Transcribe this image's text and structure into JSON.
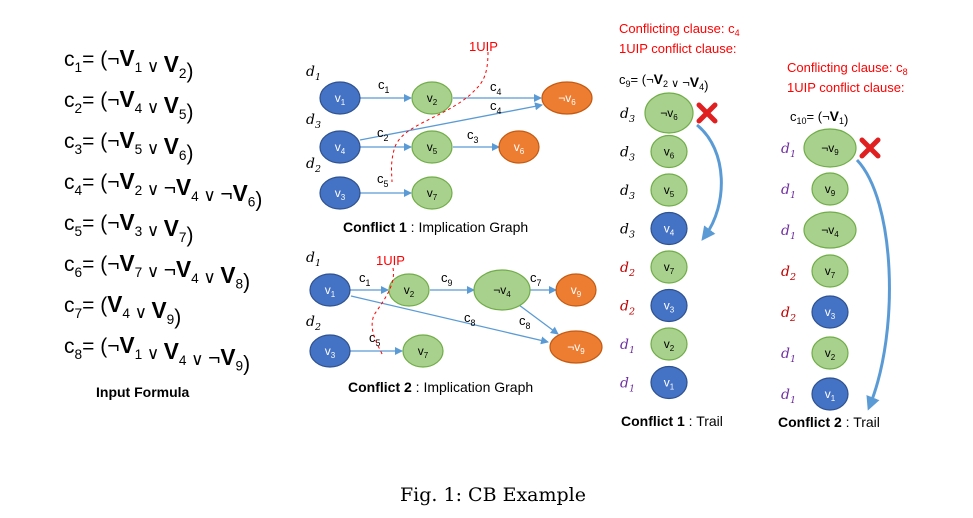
{
  "formula": {
    "rows": [
      {
        "name": "c",
        "sub": "1",
        "lits": [
          {
            "neg": true,
            "v": "V",
            "i": "1"
          },
          {
            "neg": false,
            "v": "V",
            "i": "2"
          }
        ]
      },
      {
        "name": "c",
        "sub": "2",
        "lits": [
          {
            "neg": true,
            "v": "V",
            "i": "4"
          },
          {
            "neg": false,
            "v": "V",
            "i": "5"
          }
        ]
      },
      {
        "name": "c",
        "sub": "3",
        "lits": [
          {
            "neg": true,
            "v": "V",
            "i": "5"
          },
          {
            "neg": false,
            "v": "V",
            "i": "6"
          }
        ]
      },
      {
        "name": "c",
        "sub": "4",
        "lits": [
          {
            "neg": true,
            "v": "V",
            "i": "2"
          },
          {
            "neg": true,
            "v": "V",
            "i": "4"
          },
          {
            "neg": true,
            "v": "V",
            "i": "6"
          }
        ]
      },
      {
        "name": "c",
        "sub": "5",
        "lits": [
          {
            "neg": true,
            "v": "V",
            "i": "3"
          },
          {
            "neg": false,
            "v": "V",
            "i": "7"
          }
        ]
      },
      {
        "name": "c",
        "sub": "6",
        "lits": [
          {
            "neg": true,
            "v": "V",
            "i": "7"
          },
          {
            "neg": true,
            "v": "V",
            "i": "4"
          },
          {
            "neg": false,
            "v": "V",
            "i": "8"
          }
        ]
      },
      {
        "name": "c",
        "sub": "7",
        "lits": [
          {
            "neg": false,
            "v": "V",
            "i": "4"
          },
          {
            "neg": false,
            "v": "V",
            "i": "9"
          }
        ]
      },
      {
        "name": "c",
        "sub": "8",
        "lits": [
          {
            "neg": true,
            "v": "V",
            "i": "1"
          },
          {
            "neg": false,
            "v": "V",
            "i": "4"
          },
          {
            "neg": true,
            "v": "V",
            "i": "9"
          }
        ]
      }
    ],
    "caption": "Input Formula"
  },
  "graph1": {
    "title_bold": "Conflict 1",
    "title_rest": " : Implication Graph",
    "uip_label": "1UIP",
    "nodes": [
      {
        "id": "g1v1",
        "name": "v",
        "sub": "1",
        "neg": false
      },
      {
        "id": "g1v2",
        "name": "v",
        "sub": "2",
        "neg": false
      },
      {
        "id": "g1nv6",
        "name": "v",
        "sub": "6",
        "neg": true
      },
      {
        "id": "g1v4",
        "name": "v",
        "sub": "4",
        "neg": false
      },
      {
        "id": "g1v5",
        "name": "v",
        "sub": "5",
        "neg": false
      },
      {
        "id": "g1v6",
        "name": "v",
        "sub": "6",
        "neg": false
      },
      {
        "id": "g1v3",
        "name": "v",
        "sub": "3",
        "neg": false
      },
      {
        "id": "g1v7",
        "name": "v",
        "sub": "7",
        "neg": false
      }
    ],
    "edge_labels": [
      {
        "id": "g1e1",
        "name": "c",
        "sub": "1"
      },
      {
        "id": "g1e2",
        "name": "c",
        "sub": "4"
      },
      {
        "id": "g1e3",
        "name": "c",
        "sub": "4"
      },
      {
        "id": "g1e4",
        "name": "c",
        "sub": "2"
      },
      {
        "id": "g1e5",
        "name": "c",
        "sub": "3"
      },
      {
        "id": "g1e6",
        "name": "c",
        "sub": "5"
      }
    ],
    "levels": [
      {
        "id": "g1d1",
        "name": "d",
        "sub": "1"
      },
      {
        "id": "g1d3",
        "name": "d",
        "sub": "3"
      },
      {
        "id": "g1d2",
        "name": "d",
        "sub": "2"
      }
    ]
  },
  "graph2": {
    "title_bold": "Conflict 2",
    "title_rest": " : Implication Graph",
    "uip_label": "1UIP",
    "nodes": [
      {
        "id": "g2v1",
        "name": "v",
        "sub": "1",
        "neg": false
      },
      {
        "id": "g2v2",
        "name": "v",
        "sub": "2",
        "neg": false
      },
      {
        "id": "g2nv4",
        "name": "v",
        "sub": "4",
        "neg": true
      },
      {
        "id": "g2v9",
        "name": "v",
        "sub": "9",
        "neg": false
      },
      {
        "id": "g2nv9",
        "name": "v",
        "sub": "9",
        "neg": true
      },
      {
        "id": "g2v3",
        "name": "v",
        "sub": "3",
        "neg": false
      },
      {
        "id": "g2v7",
        "name": "v",
        "sub": "7",
        "neg": false
      }
    ],
    "edge_labels": [
      {
        "id": "g2e1",
        "name": "c",
        "sub": "1"
      },
      {
        "id": "g2e2",
        "name": "c",
        "sub": "9"
      },
      {
        "id": "g2e3",
        "name": "c",
        "sub": "7"
      },
      {
        "id": "g2e4",
        "name": "c",
        "sub": "8"
      },
      {
        "id": "g2e5",
        "name": "c",
        "sub": "8"
      },
      {
        "id": "g2e6",
        "name": "c",
        "sub": "5"
      }
    ],
    "levels": [
      {
        "id": "g2d1",
        "name": "d",
        "sub": "1"
      },
      {
        "id": "g2d2",
        "name": "d",
        "sub": "2"
      }
    ]
  },
  "trail1": {
    "header_line1": "Conflicting clause: c",
    "header_line1_sub": "4",
    "header_line2": "1UIP conflict clause:",
    "learned": {
      "name": "c",
      "sub": "9",
      "lits": [
        {
          "neg": true,
          "v": "V",
          "i": "2"
        },
        {
          "neg": true,
          "v": "V",
          "i": "4"
        }
      ]
    },
    "caption_bold": "Conflict 1",
    "caption_rest": " : Trail",
    "items": [
      {
        "level": "d",
        "level_sub": "3",
        "node": "v",
        "node_sub": "6",
        "neg": true,
        "color": "green",
        "cross": true
      },
      {
        "level": "d",
        "level_sub": "3",
        "node": "v",
        "node_sub": "6",
        "neg": false,
        "color": "green",
        "cross": false
      },
      {
        "level": "d",
        "level_sub": "3",
        "node": "v",
        "node_sub": "5",
        "neg": false,
        "color": "green",
        "cross": false
      },
      {
        "level": "d",
        "level_sub": "3",
        "node": "v",
        "node_sub": "4",
        "neg": false,
        "color": "blue",
        "cross": false
      },
      {
        "level": "d",
        "level_sub": "2",
        "node": "v",
        "node_sub": "7",
        "neg": false,
        "color": "green",
        "cross": false
      },
      {
        "level": "d",
        "level_sub": "2",
        "node": "v",
        "node_sub": "3",
        "neg": false,
        "color": "blue",
        "cross": false
      },
      {
        "level": "d",
        "level_sub": "1",
        "node": "v",
        "node_sub": "2",
        "neg": false,
        "color": "green",
        "cross": false
      },
      {
        "level": "d",
        "level_sub": "1",
        "node": "v",
        "node_sub": "1",
        "neg": false,
        "color": "blue",
        "cross": false
      }
    ]
  },
  "trail2": {
    "header_line1": "Conflicting clause: c",
    "header_line1_sub": "8",
    "header_line2": "1UIP conflict clause:",
    "learned": {
      "name": "c",
      "sub": "10",
      "lits": [
        {
          "neg": true,
          "v": "V",
          "i": "1"
        }
      ]
    },
    "caption_bold": "Conflict 2",
    "caption_rest": " : Trail",
    "items": [
      {
        "level": "d",
        "level_sub": "1",
        "node": "v",
        "node_sub": "9",
        "neg": true,
        "color": "green",
        "cross": true
      },
      {
        "level": "d",
        "level_sub": "1",
        "node": "v",
        "node_sub": "9",
        "neg": false,
        "color": "green",
        "cross": false
      },
      {
        "level": "d",
        "level_sub": "1",
        "node": "v",
        "node_sub": "4",
        "neg": true,
        "color": "green",
        "cross": false
      },
      {
        "level": "d",
        "level_sub": "2",
        "node": "v",
        "node_sub": "7",
        "neg": false,
        "color": "green",
        "cross": false
      },
      {
        "level": "d",
        "level_sub": "2",
        "node": "v",
        "node_sub": "3",
        "neg": false,
        "color": "blue",
        "cross": false
      },
      {
        "level": "d",
        "level_sub": "1",
        "node": "v",
        "node_sub": "2",
        "neg": false,
        "color": "green",
        "cross": false
      },
      {
        "level": "d",
        "level_sub": "1",
        "node": "v",
        "node_sub": "1",
        "neg": false,
        "color": "blue",
        "cross": false
      }
    ]
  },
  "figure_caption": "Fig. 1: CB Example",
  "colors": {
    "blue_fill": "#4472c4",
    "blue_stroke": "#2f528f",
    "green_fill": "#a9d18e",
    "green_stroke": "#70ad47",
    "orange_fill": "#ed7d31",
    "orange_stroke": "#c55a11",
    "edge": "#5b9bd5",
    "red": "#ff0000",
    "cross": "#e02020",
    "level_red": "#c00000",
    "level_purple": "#7030a0"
  }
}
